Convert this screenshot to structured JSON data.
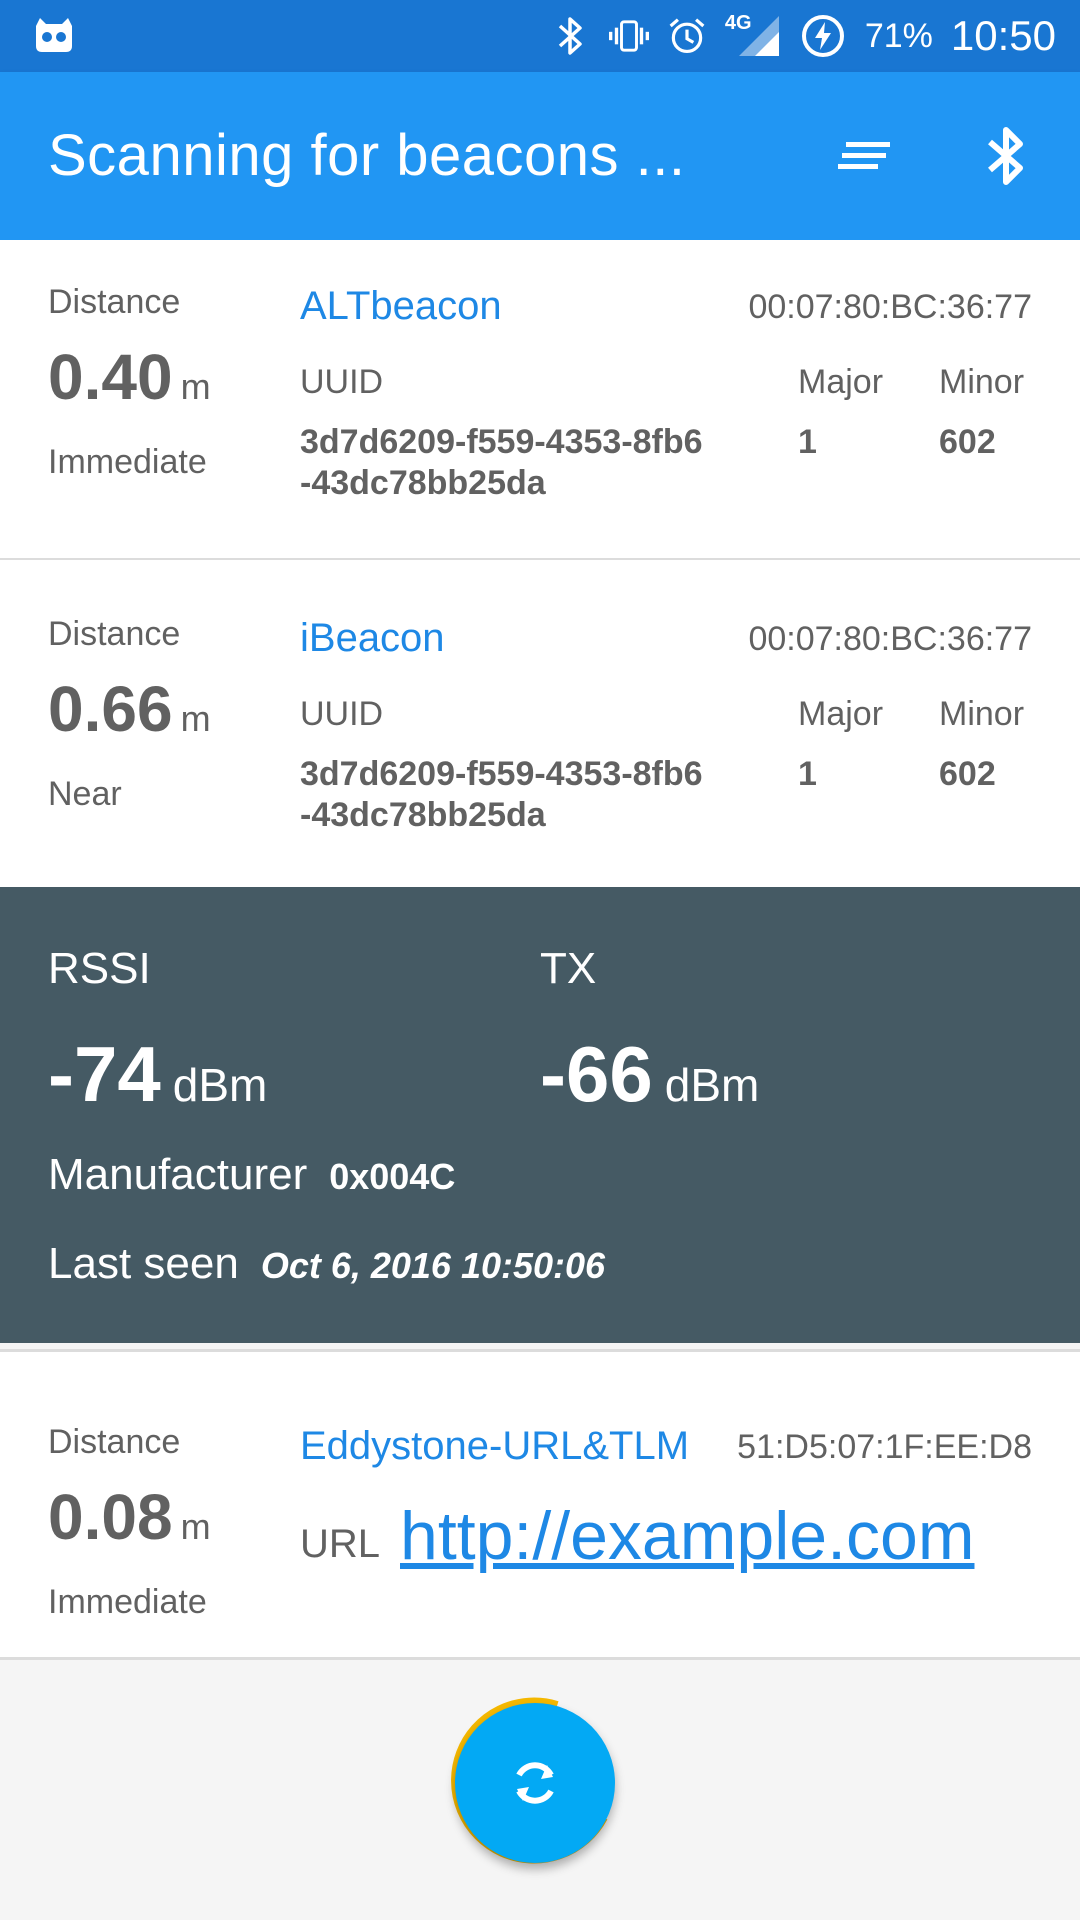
{
  "status_bar": {
    "battery": "71%",
    "time": "10:50",
    "network": "4G",
    "icons": [
      "cyanogen-icon",
      "bluetooth-icon",
      "vibrate-icon",
      "alarm-icon",
      "signal-icon",
      "battery-charging-icon"
    ]
  },
  "app_bar": {
    "title": "Scanning for beacons ...",
    "actions": [
      "sort-icon",
      "bluetooth-icon"
    ]
  },
  "labels": {
    "distance": "Distance",
    "unit_m": "m",
    "uuid": "UUID",
    "major": "Major",
    "minor": "Minor",
    "url": "URL"
  },
  "beacons": [
    {
      "type": "ALTbeacon",
      "mac": "00:07:80:BC:36:77",
      "distance": "0.40",
      "proximity": "Immediate",
      "uuid_line1": "3d7d6209-f559-4353-8fb6",
      "uuid_line2": "-43dc78bb25da",
      "major": "1",
      "minor": "602"
    },
    {
      "type": "iBeacon",
      "mac": "00:07:80:BC:36:77",
      "distance": "0.66",
      "proximity": "Near",
      "uuid_line1": "3d7d6209-f559-4353-8fb6",
      "uuid_line2": "-43dc78bb25da",
      "major": "1",
      "minor": "602"
    },
    {
      "type": "Eddystone-URL&TLM",
      "mac": "51:D5:07:1F:EE:D8",
      "distance": "0.08",
      "proximity": "Immediate",
      "url": "http://example.com"
    }
  ],
  "details": {
    "rssi_label": "RSSI",
    "rssi_value": "-74",
    "tx_label": "TX",
    "tx_value": "-66",
    "unit_dbm": "dBm",
    "manufacturer_label": "Manufacturer",
    "manufacturer_value": "0x004C",
    "last_seen_label": "Last seen",
    "last_seen_value": "Oct 6, 2016 10:50:06"
  },
  "colors": {
    "status_bar": "#1976d2",
    "app_bar": "#2196f3",
    "details_bg": "#455a64",
    "link": "#1e88e5",
    "fab": "#03a9f4",
    "fab_ring": "#f5b800"
  },
  "fab": {
    "icon": "refresh-icon"
  }
}
